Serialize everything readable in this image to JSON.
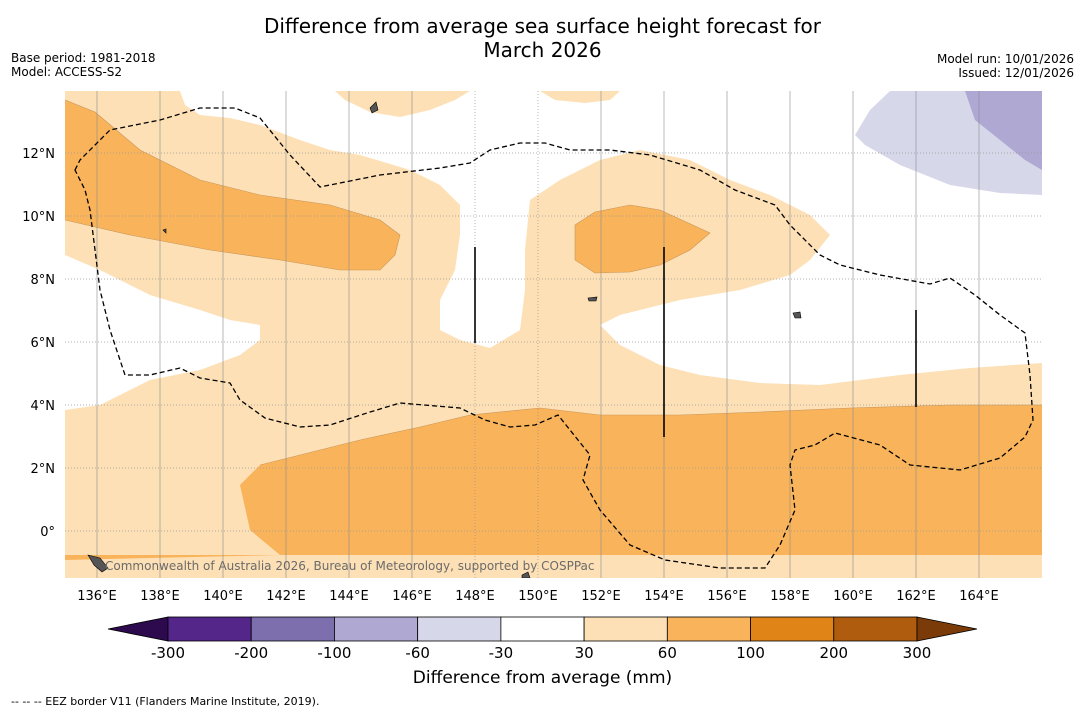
{
  "title_line1": "Difference from average sea surface height forecast for",
  "title_line2": "March 2026",
  "base_period": "Base period: 1981-2018",
  "model": "Model: ACCESS-S2",
  "model_run": "Model run: 10/01/2026",
  "issued": "Issued: 12/01/2026",
  "attribution": "Commonwealth of Australia 2026, Bureau of Meteorology, supported by COSPPac",
  "footnote": "--  --  -- EEZ border V11 (Flanders Marine Institute, 2019).",
  "lat_labels": [
    "12°N",
    "10°N",
    "8°N",
    "6°N",
    "4°N",
    "2°N",
    "0°"
  ],
  "lon_labels": [
    "136°E",
    "138°E",
    "140°E",
    "142°E",
    "144°E",
    "146°E",
    "148°E",
    "150°E",
    "152°E",
    "154°E",
    "156°E",
    "158°E",
    "160°E",
    "162°E",
    "164°E"
  ],
  "colorbar": {
    "title": "Difference from average (mm)",
    "ticks": [
      "-300",
      "-200",
      "-100",
      "-60",
      "-30",
      "30",
      "60",
      "100",
      "200",
      "300"
    ],
    "colors": [
      "#2d0a4d",
      "#54268a",
      "#7d6fad",
      "#aea8d2",
      "#d7d7ea",
      "#ffffff",
      "#fde0b5",
      "#f9b45b",
      "#e08418",
      "#b05c0e",
      "#7a3b08"
    ]
  }
}
